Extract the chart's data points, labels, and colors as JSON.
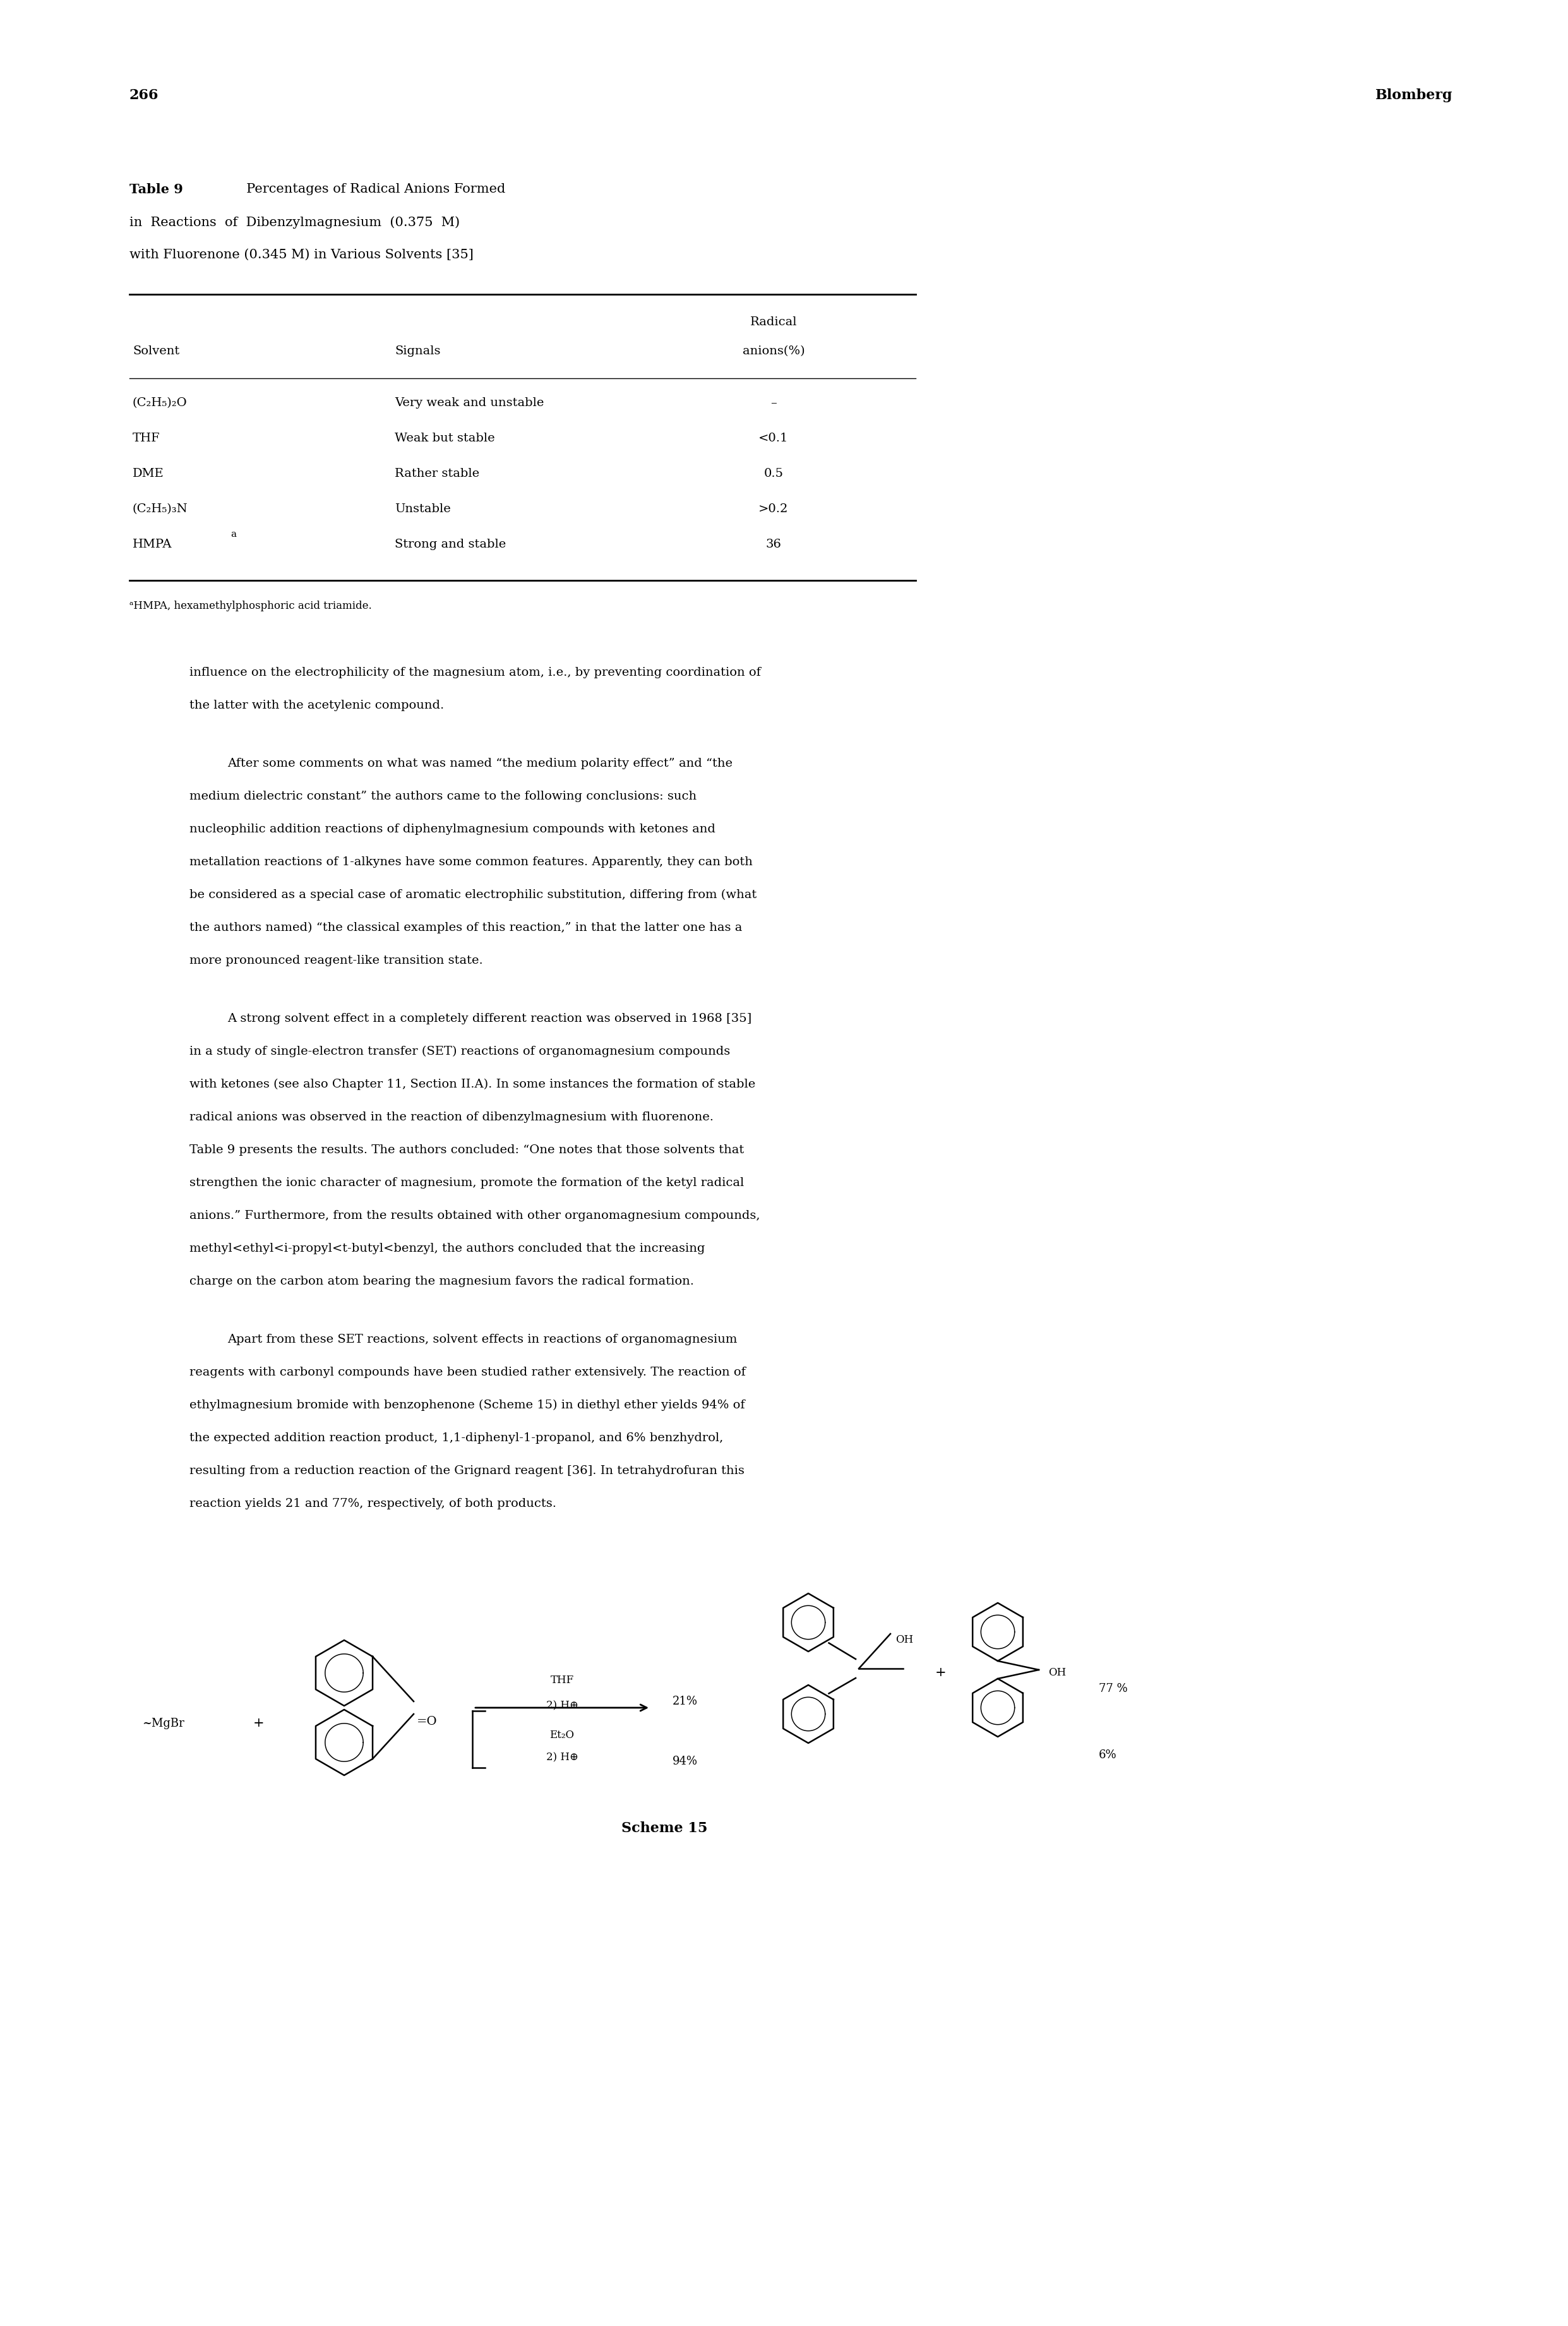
{
  "page_number": "266",
  "page_header_right": "Blomberg",
  "table_title_bold": "Table 9",
  "table_title_rest_line1": "  Percentages of Radical Anions Formed",
  "table_title_line2": "in  Reactions  of  Dibenzylmagnesium  (0.375  M)",
  "table_title_line3": "with Fluorenone (0.345 M) in Various Solvents [35]",
  "col1_header": "Solvent",
  "col2_header": "Signals",
  "col3_header_line1": "Radical",
  "col3_header_line2": "anions(%)",
  "table_rows": [
    [
      "(C₂H₅)₂O",
      "Very weak and unstable",
      "–"
    ],
    [
      "THF",
      "Weak but stable",
      "<0.1"
    ],
    [
      "DME",
      "Rather stable",
      "0.5"
    ],
    [
      "(C₂H₅)₃N",
      "Unstable",
      ">0.2"
    ],
    [
      "HMPA",
      "Strong and stable",
      "36"
    ]
  ],
  "footnote": "ᵃHMPA, hexamethylphosphoric acid triamide.",
  "para1_lines": [
    "influence on the electrophilicity of the magnesium atom, i.e., by preventing coordination of",
    "the latter with the acetylenic compound."
  ],
  "para2_lines": [
    "After some comments on what was named “the medium polarity effect” and “the",
    "medium dielectric constant” the authors came to the following conclusions: such",
    "nucleophilic addition reactions of diphenylmagnesium compounds with ketones and",
    "metallation reactions of 1-alkynes have some common features. Apparently, they can both",
    "be considered as a special case of aromatic electrophilic substitution, differing from (what",
    "the authors named) “the classical examples of this reaction,” in that the latter one has a",
    "more pronounced reagent-like transition state."
  ],
  "para3_lines": [
    "A strong solvent effect in a completely different reaction was observed in 1968 [35]",
    "in a study of single-electron transfer (SET) reactions of organomagnesium compounds",
    "with ketones (see also Chapter 11, Section II.A). In some instances the formation of stable",
    "radical anions was observed in the reaction of dibenzylmagnesium with fluorenone.",
    "Table 9 presents the results. The authors concluded: “One notes that those solvents that",
    "strengthen the ionic character of magnesium, promote the formation of the ketyl radical",
    "anions.” Furthermore, from the results obtained with other organomagnesium compounds,",
    "methyl<ethyl<i-propyl<t-butyl<benzyl, the authors concluded that the increasing",
    "charge on the carbon atom bearing the magnesium favors the radical formation."
  ],
  "para4_lines": [
    "Apart from these SET reactions, solvent effects in reactions of organomagnesium",
    "reagents with carbonyl compounds have been studied rather extensively. The reaction of",
    "ethylmagnesium bromide with benzophenone (Scheme 15) in diethyl ether yields 94% of",
    "the expected addition reaction product, 1,1-diphenyl-1-propanol, and 6% benzhydrol,",
    "resulting from a reduction reaction of the Grignard reagent [36]. In tetrahydrofuran this",
    "reaction yields 21 and 77%, respectively, of both products."
  ],
  "scheme_label": "Scheme 15",
  "bg_color": "#ffffff",
  "text_color": "#000000"
}
